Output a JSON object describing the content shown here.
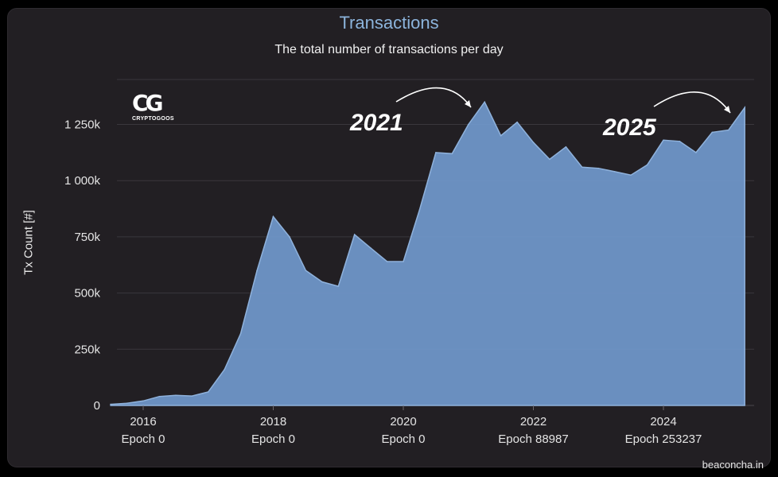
{
  "chart_data": {
    "type": "area",
    "title": "Transactions",
    "subtitle": "The total number of transactions per day",
    "ylabel": "Tx Count [#]",
    "ylim": [
      0,
      1450000
    ],
    "xlim": [
      "2015-07",
      "2025-04"
    ],
    "y_ticks": [
      {
        "value": 0,
        "label": "0"
      },
      {
        "value": 250000,
        "label": "250k"
      },
      {
        "value": 500000,
        "label": "500k"
      },
      {
        "value": 750000,
        "label": "750k"
      },
      {
        "value": 1000000,
        "label": "1 000k"
      },
      {
        "value": 1250000,
        "label": "1 250k"
      }
    ],
    "x_ticks": [
      {
        "date": "2016-01",
        "year": "2016",
        "epoch": "Epoch 0"
      },
      {
        "date": "2018-01",
        "year": "2018",
        "epoch": "Epoch 0"
      },
      {
        "date": "2020-01",
        "year": "2020",
        "epoch": "Epoch 0"
      },
      {
        "date": "2022-01",
        "year": "2022",
        "epoch": "Epoch 88987"
      },
      {
        "date": "2024-01",
        "year": "2024",
        "epoch": "Epoch 253237"
      }
    ],
    "grid": true,
    "color": "#6f96c8",
    "series": [
      {
        "name": "",
        "points": [
          {
            "date": "2015-07",
            "value": 5000
          },
          {
            "date": "2015-10",
            "value": 10000
          },
          {
            "date": "2016-01",
            "value": 20000
          },
          {
            "date": "2016-04",
            "value": 40000
          },
          {
            "date": "2016-07",
            "value": 45000
          },
          {
            "date": "2016-10",
            "value": 42000
          },
          {
            "date": "2017-01",
            "value": 60000
          },
          {
            "date": "2017-04",
            "value": 160000
          },
          {
            "date": "2017-07",
            "value": 320000
          },
          {
            "date": "2017-10",
            "value": 600000
          },
          {
            "date": "2018-01",
            "value": 840000
          },
          {
            "date": "2018-04",
            "value": 750000
          },
          {
            "date": "2018-07",
            "value": 600000
          },
          {
            "date": "2018-10",
            "value": 550000
          },
          {
            "date": "2019-01",
            "value": 530000
          },
          {
            "date": "2019-04",
            "value": 760000
          },
          {
            "date": "2019-07",
            "value": 700000
          },
          {
            "date": "2019-10",
            "value": 640000
          },
          {
            "date": "2020-01",
            "value": 640000
          },
          {
            "date": "2020-04",
            "value": 870000
          },
          {
            "date": "2020-07",
            "value": 1125000
          },
          {
            "date": "2020-10",
            "value": 1120000
          },
          {
            "date": "2021-01",
            "value": 1250000
          },
          {
            "date": "2021-04",
            "value": 1350000
          },
          {
            "date": "2021-07",
            "value": 1200000
          },
          {
            "date": "2021-10",
            "value": 1260000
          },
          {
            "date": "2022-01",
            "value": 1170000
          },
          {
            "date": "2022-04",
            "value": 1095000
          },
          {
            "date": "2022-07",
            "value": 1150000
          },
          {
            "date": "2022-10",
            "value": 1060000
          },
          {
            "date": "2023-01",
            "value": 1055000
          },
          {
            "date": "2023-04",
            "value": 1040000
          },
          {
            "date": "2023-07",
            "value": 1025000
          },
          {
            "date": "2023-10",
            "value": 1070000
          },
          {
            "date": "2024-01",
            "value": 1180000
          },
          {
            "date": "2024-04",
            "value": 1175000
          },
          {
            "date": "2024-07",
            "value": 1125000
          },
          {
            "date": "2024-10",
            "value": 1215000
          },
          {
            "date": "2025-01",
            "value": 1225000
          },
          {
            "date": "2025-04",
            "value": 1325000
          }
        ]
      }
    ],
    "annotations": [
      {
        "text": "2021",
        "target_date": "2021-04"
      },
      {
        "text": "2025",
        "target_date": "2025-04"
      }
    ]
  },
  "logo": {
    "mark": "CG",
    "text": "CRYPTOGOOS"
  },
  "footer": "beaconcha.in"
}
